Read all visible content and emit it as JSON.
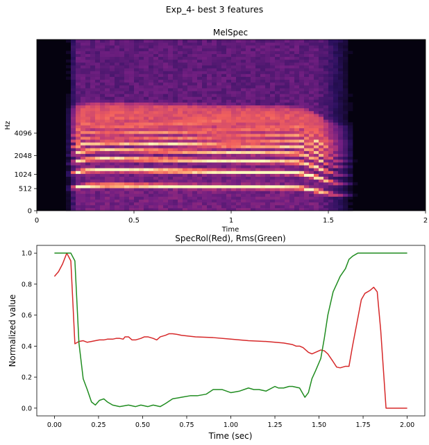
{
  "figure": {
    "suptitle": "Exp_4- best 3 features"
  },
  "chart_data": [
    {
      "type": "heatmap",
      "title": "MelSpec",
      "xlabel": "Time",
      "ylabel": "Hz",
      "xlim": [
        0,
        2.0
      ],
      "x_ticks": [
        0,
        0.5,
        1,
        1.5,
        2
      ],
      "x_tick_labels": [
        "0",
        "0.5",
        "1",
        "1.5",
        "2"
      ],
      "y_scale": "mel",
      "y_ticks": [
        0,
        512,
        1024,
        2048,
        4096
      ],
      "y_tick_labels": [
        "0",
        "512",
        "1024",
        "2048",
        "4096"
      ],
      "colormap": "magma",
      "colormap_stops": [
        "#000004",
        "#2c115f",
        "#721f81",
        "#b73779",
        "#f1605d",
        "#feb078",
        "#fcfdbf"
      ],
      "signal_time_range": [
        0.15,
        1.65
      ],
      "fundamental_hz": [
        [
          0.15,
          520
        ],
        [
          0.25,
          600
        ],
        [
          0.35,
          620
        ],
        [
          0.5,
          610
        ],
        [
          0.75,
          590
        ],
        [
          1.0,
          570
        ],
        [
          1.25,
          560
        ],
        [
          1.35,
          550
        ],
        [
          1.42,
          480
        ],
        [
          1.5,
          380
        ],
        [
          1.55,
          340
        ]
      ],
      "harmonic_weights": [
        0.95,
        1.0,
        0.85,
        0.75,
        0.8,
        0.7,
        0.75,
        0.6,
        0.6,
        0.55,
        0.5,
        0.45,
        0.4,
        0.35,
        0.3
      ]
    },
    {
      "type": "line",
      "title": "SpecRol(Red), Rms(Green)",
      "xlabel": "Time (sec)",
      "ylabel": "Normalized value",
      "xlim": [
        -0.1,
        2.1
      ],
      "ylim": [
        -0.05,
        1.05
      ],
      "x_ticks": [
        0,
        0.25,
        0.5,
        0.75,
        1.0,
        1.25,
        1.5,
        1.75,
        2.0
      ],
      "x_tick_labels": [
        "0.00",
        "0.25",
        "0.50",
        "0.75",
        "1.00",
        "1.25",
        "1.50",
        "1.75",
        "2.00"
      ],
      "y_ticks": [
        0,
        0.2,
        0.4,
        0.6,
        0.8,
        1.0
      ],
      "y_tick_labels": [
        "0.0",
        "0.2",
        "0.4",
        "0.6",
        "0.8",
        "1.0"
      ],
      "grid": false,
      "series": [
        {
          "color": "#d62728",
          "x": [
            0.0,
            0.023,
            0.046,
            0.07,
            0.093,
            0.116,
            0.139,
            0.163,
            0.186,
            0.21,
            0.232,
            0.255,
            0.28,
            0.3,
            0.33,
            0.35,
            0.37,
            0.39,
            0.4,
            0.42,
            0.44,
            0.46,
            0.49,
            0.51,
            0.53,
            0.56,
            0.58,
            0.6,
            0.63,
            0.65,
            0.67,
            0.7,
            0.72,
            0.8,
            0.9,
            1.0,
            1.1,
            1.2,
            1.3,
            1.35,
            1.37,
            1.39,
            1.41,
            1.44,
            1.46,
            1.48,
            1.51,
            1.53,
            1.55,
            1.58,
            1.6,
            1.62,
            1.65,
            1.67,
            1.69,
            1.72,
            1.74,
            1.76,
            1.79,
            1.81,
            1.83,
            1.85,
            1.88,
            2.0
          ],
          "y": [
            0.85,
            0.88,
            0.93,
            1.0,
            0.95,
            0.415,
            0.43,
            0.435,
            0.425,
            0.43,
            0.435,
            0.44,
            0.44,
            0.445,
            0.445,
            0.45,
            0.45,
            0.445,
            0.46,
            0.46,
            0.44,
            0.44,
            0.45,
            0.46,
            0.46,
            0.45,
            0.44,
            0.46,
            0.47,
            0.48,
            0.48,
            0.475,
            0.47,
            0.46,
            0.455,
            0.445,
            0.435,
            0.43,
            0.42,
            0.41,
            0.4,
            0.4,
            0.39,
            0.36,
            0.35,
            0.36,
            0.375,
            0.37,
            0.35,
            0.3,
            0.265,
            0.26,
            0.27,
            0.27,
            0.4,
            0.58,
            0.7,
            0.74,
            0.76,
            0.78,
            0.75,
            0.5,
            0.0,
            0.0
          ]
        },
        {
          "color": "#1f8c1f",
          "x": [
            0.0,
            0.07,
            0.093,
            0.116,
            0.139,
            0.163,
            0.186,
            0.21,
            0.232,
            0.255,
            0.28,
            0.3,
            0.33,
            0.37,
            0.42,
            0.46,
            0.49,
            0.53,
            0.56,
            0.6,
            0.63,
            0.67,
            0.72,
            0.77,
            0.81,
            0.86,
            0.9,
            0.95,
            1.0,
            1.05,
            1.1,
            1.13,
            1.16,
            1.2,
            1.25,
            1.27,
            1.3,
            1.33,
            1.35,
            1.39,
            1.42,
            1.44,
            1.46,
            1.48,
            1.51,
            1.53,
            1.55,
            1.58,
            1.6,
            1.62,
            1.65,
            1.67,
            1.69,
            1.72,
            1.76,
            1.79,
            1.83,
            2.0
          ],
          "y": [
            1.0,
            1.0,
            1.0,
            0.95,
            0.42,
            0.19,
            0.12,
            0.04,
            0.02,
            0.05,
            0.06,
            0.04,
            0.02,
            0.01,
            0.02,
            0.01,
            0.02,
            0.01,
            0.02,
            0.01,
            0.03,
            0.06,
            0.07,
            0.08,
            0.08,
            0.09,
            0.12,
            0.12,
            0.1,
            0.11,
            0.13,
            0.12,
            0.12,
            0.11,
            0.14,
            0.13,
            0.13,
            0.14,
            0.14,
            0.13,
            0.07,
            0.1,
            0.19,
            0.24,
            0.32,
            0.45,
            0.6,
            0.75,
            0.8,
            0.85,
            0.9,
            0.96,
            0.98,
            1.0,
            1.0,
            1.0,
            1.0,
            1.0
          ]
        }
      ]
    }
  ]
}
